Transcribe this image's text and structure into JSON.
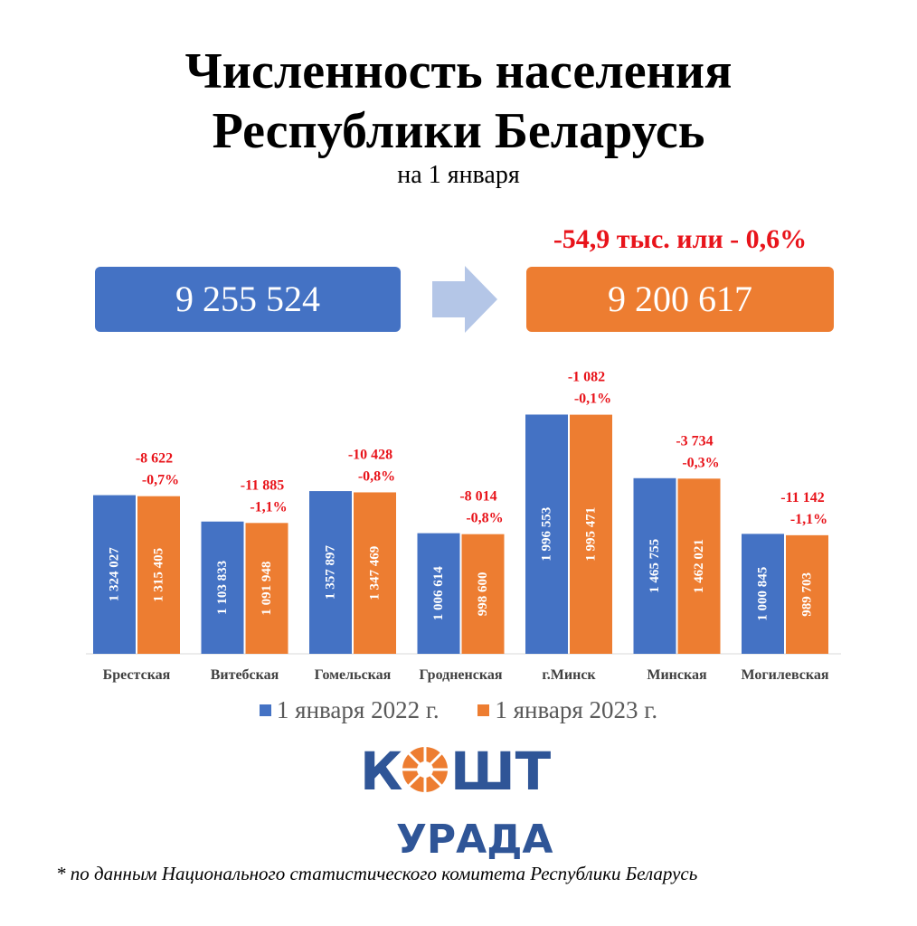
{
  "header": {
    "title_line1": "Численность населения",
    "title_line2": "Республики Беларусь",
    "subtitle": "на 1 января"
  },
  "totals": {
    "value_2022": "9 255 524",
    "value_2023": "9 200 617",
    "change": "-54,9 тыс. или - 0,6%"
  },
  "colors": {
    "series_2022": "#4472c4",
    "series_2023": "#ed7d31",
    "change_text": "#e8141b",
    "arrow": "#b4c6e7"
  },
  "logo": {
    "top_text": "КОШТ",
    "bottom_text": "УРАДА"
  },
  "footnote": "* по данным Национального статистического комитета Республики Беларусь",
  "chart_data": {
    "type": "bar",
    "categories": [
      "Брестская",
      "Витебская",
      "Гомельская",
      "Гродненская",
      "г.Минск",
      "Минская",
      "Могилевская"
    ],
    "series": [
      {
        "name": "1 января 2022 г.",
        "values": [
          1324027,
          1103833,
          1357897,
          1006614,
          1996553,
          1465755,
          1000845
        ],
        "labels": [
          "1 324 027",
          "1 103 833",
          "1 357 897",
          "1 006 614",
          "1 996 553",
          "1 465 755",
          "1 000 845"
        ]
      },
      {
        "name": "1 января 2023 г.",
        "values": [
          1315405,
          1091948,
          1347469,
          998600,
          1995471,
          1462021,
          989703
        ],
        "labels": [
          "1 315 405",
          "1 091 948",
          "1 347 469",
          "998 600",
          "1 995 471",
          "1 462 021",
          "989 703"
        ]
      }
    ],
    "changes": [
      "-8 622",
      "-11 885",
      "-10 428",
      "-8 014",
      "-1 082",
      "-3 734",
      "-11 142"
    ],
    "change_pct": [
      "-0,7%",
      "-1,1%",
      "-0,8%",
      "-0,8%",
      "-0,1%",
      "-0,3%",
      "-1,1%"
    ],
    "ylim": [
      0,
      2300000
    ],
    "grid": false,
    "legend": "bottom"
  }
}
